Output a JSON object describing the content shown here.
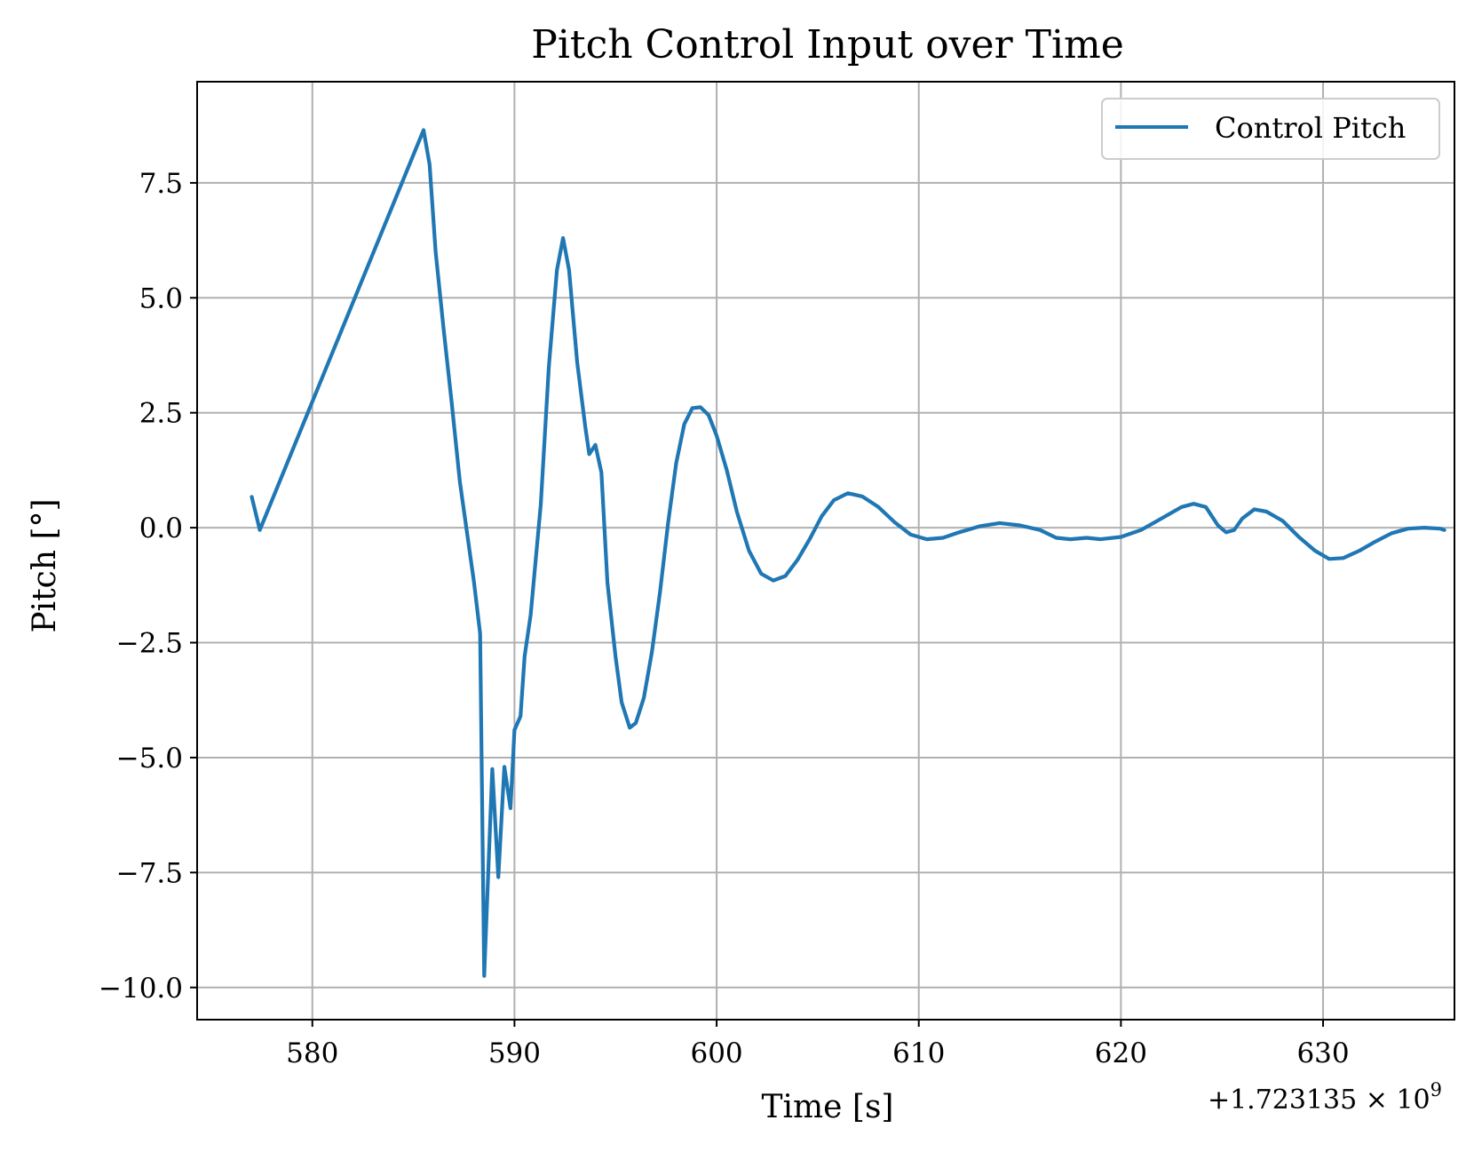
{
  "chart_data": {
    "type": "line",
    "title": "Pitch Control Input over Time",
    "xlabel": "Time [s]",
    "ylabel": "Pitch [°]",
    "x_offset_label": "+1.723135 × 10",
    "x_offset_exponent": "9",
    "xlim": [
      574.3,
      636.5
    ],
    "ylim": [
      -10.7,
      9.7
    ],
    "xticks": [
      580,
      590,
      600,
      610,
      620,
      630
    ],
    "xtick_labels": [
      "580",
      "590",
      "600",
      "610",
      "620",
      "630"
    ],
    "yticks": [
      -10,
      -7.5,
      -5,
      -2.5,
      0,
      2.5,
      5,
      7.5
    ],
    "ytick_labels": [
      "−10.0",
      "−7.5",
      "−5.0",
      "−2.5",
      "0.0",
      "2.5",
      "5.0",
      "7.5"
    ],
    "grid": true,
    "legend_position": "top-right",
    "series": [
      {
        "name": "Control Pitch",
        "color": "#1f77b4",
        "points": [
          [
            577.0,
            0.67
          ],
          [
            577.4,
            -0.05
          ],
          [
            585.5,
            8.65
          ],
          [
            585.8,
            7.9
          ],
          [
            586.1,
            6.0
          ],
          [
            586.5,
            4.3
          ],
          [
            586.9,
            2.7
          ],
          [
            587.3,
            1.0
          ],
          [
            588.0,
            -1.2
          ],
          [
            588.3,
            -2.3
          ],
          [
            588.5,
            -9.75
          ],
          [
            588.9,
            -5.25
          ],
          [
            589.2,
            -7.6
          ],
          [
            589.5,
            -5.2
          ],
          [
            589.8,
            -6.1
          ],
          [
            590.0,
            -4.4
          ],
          [
            590.3,
            -4.1
          ],
          [
            590.5,
            -2.8
          ],
          [
            590.8,
            -1.9
          ],
          [
            591.3,
            0.5
          ],
          [
            591.7,
            3.5
          ],
          [
            592.1,
            5.6
          ],
          [
            592.4,
            6.3
          ],
          [
            592.7,
            5.6
          ],
          [
            593.1,
            3.6
          ],
          [
            593.5,
            2.2
          ],
          [
            593.7,
            1.6
          ],
          [
            594.0,
            1.8
          ],
          [
            594.3,
            1.2
          ],
          [
            594.6,
            -1.2
          ],
          [
            595.0,
            -2.8
          ],
          [
            595.3,
            -3.8
          ],
          [
            595.7,
            -4.35
          ],
          [
            596.0,
            -4.25
          ],
          [
            596.4,
            -3.7
          ],
          [
            596.8,
            -2.7
          ],
          [
            597.2,
            -1.4
          ],
          [
            597.6,
            0.1
          ],
          [
            598.0,
            1.4
          ],
          [
            598.4,
            2.25
          ],
          [
            598.8,
            2.6
          ],
          [
            599.2,
            2.62
          ],
          [
            599.6,
            2.45
          ],
          [
            600.0,
            2.0
          ],
          [
            600.5,
            1.25
          ],
          [
            601.0,
            0.35
          ],
          [
            601.6,
            -0.5
          ],
          [
            602.2,
            -1.0
          ],
          [
            602.8,
            -1.15
          ],
          [
            603.4,
            -1.05
          ],
          [
            604.0,
            -0.7
          ],
          [
            604.6,
            -0.25
          ],
          [
            605.2,
            0.25
          ],
          [
            605.8,
            0.6
          ],
          [
            606.5,
            0.75
          ],
          [
            607.2,
            0.68
          ],
          [
            608.0,
            0.45
          ],
          [
            608.8,
            0.12
          ],
          [
            609.6,
            -0.15
          ],
          [
            610.4,
            -0.25
          ],
          [
            611.2,
            -0.22
          ],
          [
            612.0,
            -0.1
          ],
          [
            613.0,
            0.03
          ],
          [
            614.0,
            0.1
          ],
          [
            615.0,
            0.05
          ],
          [
            616.0,
            -0.05
          ],
          [
            616.8,
            -0.22
          ],
          [
            617.5,
            -0.25
          ],
          [
            618.3,
            -0.22
          ],
          [
            619.0,
            -0.25
          ],
          [
            620.0,
            -0.2
          ],
          [
            621.0,
            -0.05
          ],
          [
            622.0,
            0.2
          ],
          [
            623.0,
            0.45
          ],
          [
            623.6,
            0.52
          ],
          [
            624.2,
            0.45
          ],
          [
            624.8,
            0.05
          ],
          [
            625.2,
            -0.1
          ],
          [
            625.6,
            -0.05
          ],
          [
            626.0,
            0.2
          ],
          [
            626.6,
            0.4
          ],
          [
            627.2,
            0.35
          ],
          [
            628.0,
            0.15
          ],
          [
            628.8,
            -0.2
          ],
          [
            629.6,
            -0.5
          ],
          [
            630.3,
            -0.68
          ],
          [
            631.0,
            -0.66
          ],
          [
            631.8,
            -0.5
          ],
          [
            632.6,
            -0.3
          ],
          [
            633.4,
            -0.12
          ],
          [
            634.2,
            -0.02
          ],
          [
            635.0,
            0.0
          ],
          [
            635.8,
            -0.02
          ],
          [
            636.0,
            -0.05
          ]
        ]
      }
    ]
  }
}
